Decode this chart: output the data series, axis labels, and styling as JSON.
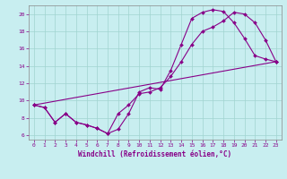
{
  "xlabel": "Windchill (Refroidissement éolien,°C)",
  "background_color": "#c8eef0",
  "grid_color": "#a0d4d0",
  "line_color": "#880088",
  "xlim": [
    -0.5,
    23.5
  ],
  "ylim": [
    5.5,
    21.0
  ],
  "xticks": [
    0,
    1,
    2,
    3,
    4,
    5,
    6,
    7,
    8,
    9,
    10,
    11,
    12,
    13,
    14,
    15,
    16,
    17,
    18,
    19,
    20,
    21,
    22,
    23
  ],
  "yticks": [
    6,
    8,
    10,
    12,
    14,
    16,
    18,
    20
  ],
  "curve1_x": [
    0,
    1,
    2,
    3,
    4,
    5,
    6,
    7,
    8,
    9,
    10,
    11,
    12,
    13,
    14,
    15,
    16,
    17,
    18,
    19,
    20,
    21,
    22,
    23
  ],
  "curve1_y": [
    9.5,
    9.2,
    7.5,
    8.5,
    7.5,
    7.2,
    6.8,
    6.2,
    6.7,
    8.5,
    11.0,
    11.5,
    11.3,
    13.5,
    16.5,
    19.5,
    20.2,
    20.5,
    20.3,
    19.0,
    17.2,
    15.2,
    14.8,
    14.5
  ],
  "curve2_x": [
    0,
    1,
    2,
    3,
    4,
    5,
    6,
    7,
    8,
    9,
    10,
    11,
    12,
    13,
    14,
    15,
    16,
    17,
    18,
    19,
    20,
    21,
    22,
    23
  ],
  "curve2_y": [
    9.5,
    9.2,
    7.5,
    8.5,
    7.5,
    7.2,
    6.8,
    6.2,
    8.5,
    9.5,
    10.8,
    11.0,
    11.5,
    12.8,
    14.5,
    16.5,
    18.0,
    18.5,
    19.2,
    20.2,
    20.0,
    19.0,
    17.0,
    14.5
  ],
  "curve3_x": [
    0,
    23
  ],
  "curve3_y": [
    9.5,
    14.5
  ]
}
